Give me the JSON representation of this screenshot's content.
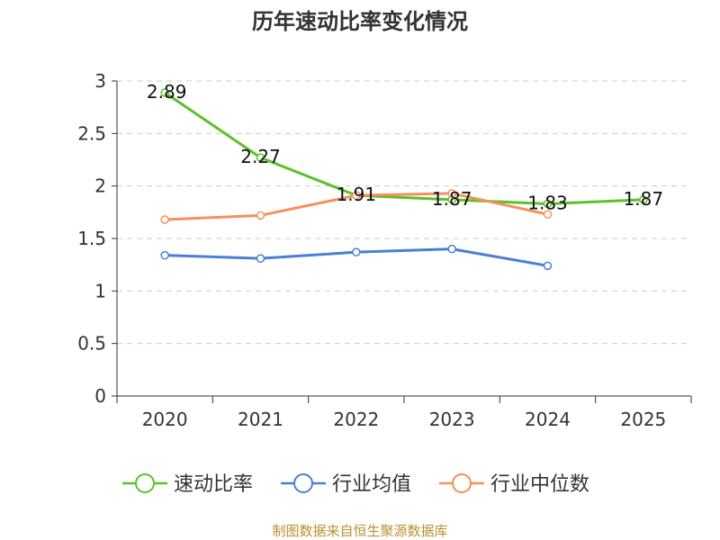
{
  "chart_data": {
    "type": "line",
    "title": "历年速动比率变化情况",
    "categories": [
      "2020",
      "2021",
      "2022",
      "2023",
      "2024",
      "2025"
    ],
    "ylim": [
      0,
      3
    ],
    "yticks": [
      "0",
      "0.5",
      "1",
      "1.5",
      "2",
      "2.5",
      "3"
    ],
    "grid": true,
    "legend_position": "bottom",
    "series": [
      {
        "name": "速动比率",
        "color": "#5cc12a",
        "values": [
          2.89,
          2.27,
          1.91,
          1.87,
          1.83,
          1.87
        ],
        "labels": [
          "2.89",
          "2.27",
          "1.91",
          "1.87",
          "1.83",
          "1.87"
        ]
      },
      {
        "name": "行业均值",
        "color": "#4b7fd8",
        "values": [
          1.34,
          1.31,
          1.37,
          1.4,
          1.24,
          null
        ]
      },
      {
        "name": "行业中位数",
        "color": "#f4915c",
        "values": [
          1.68,
          1.72,
          1.91,
          1.93,
          1.73,
          null
        ]
      }
    ]
  },
  "source_note": "制图数据来自恒生聚源数据库"
}
